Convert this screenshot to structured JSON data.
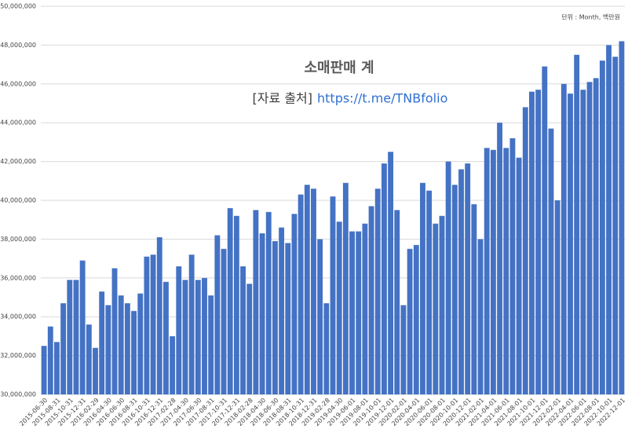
{
  "chart_data": {
    "type": "bar",
    "title": "소매판매 계",
    "source_label": "[자료 출처]",
    "source_url": "https://t.me/TNBfolio",
    "unit_note": "단위 : Month, 백만원",
    "categories": [
      "2015-06-30",
      null,
      "2015-08-31",
      null,
      "2015-10-31",
      null,
      "2015-12-31",
      null,
      "2016-02-29",
      null,
      "2016-04-30",
      null,
      "2016-06-30",
      null,
      "2016-08-31",
      null,
      "2016-10-31",
      null,
      "2016-12-31",
      null,
      "2017-02-28",
      null,
      "2017-04-30",
      null,
      "2017-06-30",
      null,
      "2017-08-31",
      null,
      "2017-10-31",
      null,
      "2017-12-31",
      null,
      "2018-02-28",
      null,
      "2018-04-30",
      null,
      "2018-06-30",
      null,
      "2018-08-31",
      null,
      "2018-10-31",
      null,
      "2018-12-31",
      null,
      "2019-02-28",
      null,
      "2019-04-30",
      null,
      "2019-06-01",
      null,
      "2019-08-01",
      null,
      "2019-10-01",
      null,
      "2019-12-01",
      null,
      "2020-02-01",
      null,
      "2020-04-01",
      null,
      "2020-06-01",
      null,
      "2020-08-01",
      null,
      "2020-10-01",
      null,
      "2020-12-01",
      null,
      "2021-02-01",
      null,
      "2021-04-01",
      null,
      "2021-06-01",
      null,
      "2021-08-01",
      null,
      "2021-10-01",
      null,
      "2021-12-01",
      null,
      "2022-02-01",
      null,
      "2022-04-01",
      null,
      "2022-06-01",
      null,
      "2022-08-01",
      null,
      "2022-10-01",
      null,
      "2022-12-01"
    ],
    "values": [
      32500000,
      33500000,
      32700000,
      34700000,
      35900000,
      35900000,
      36900000,
      33600000,
      32400000,
      35300000,
      34600000,
      36500000,
      35100000,
      34700000,
      34300000,
      35200000,
      37100000,
      37200000,
      38100000,
      35800000,
      33000000,
      36600000,
      35900000,
      37200000,
      35900000,
      36000000,
      35100000,
      38200000,
      37500000,
      39600000,
      39200000,
      36600000,
      35700000,
      39500000,
      38300000,
      39400000,
      37900000,
      38600000,
      37800000,
      39300000,
      40300000,
      40800000,
      40600000,
      38000000,
      34700000,
      40200000,
      38900000,
      40900000,
      38400000,
      38400000,
      38800000,
      39700000,
      40600000,
      41900000,
      42500000,
      39500000,
      34600000,
      37500000,
      37700000,
      40900000,
      40500000,
      38800000,
      39200000,
      42000000,
      40800000,
      41600000,
      41900000,
      39800000,
      38000000,
      42700000,
      42600000,
      44000000,
      42700000,
      43200000,
      42200000,
      44800000,
      45600000,
      45700000,
      46900000,
      43700000,
      40000000,
      46000000,
      45500000,
      47500000,
      45700000,
      46100000,
      46300000,
      47200000,
      48000000,
      47400000,
      48200000
    ],
    "color": "#4472c4",
    "ylim": [
      30000000,
      50000000
    ],
    "yticks": [
      {
        "value": 30000000,
        "label": "30,000,000"
      },
      {
        "value": 32000000,
        "label": "32,000,000"
      },
      {
        "value": 34000000,
        "label": "34,000,000"
      },
      {
        "value": 36000000,
        "label": "36,000,000"
      },
      {
        "value": 38000000,
        "label": "38,000,000"
      },
      {
        "value": 40000000,
        "label": "40,000,000"
      },
      {
        "value": 42000000,
        "label": "42,000,000"
      },
      {
        "value": 44000000,
        "label": "44,000,000"
      },
      {
        "value": 46000000,
        "label": "46,000,000"
      },
      {
        "value": 48000000,
        "label": "48,000,000"
      },
      {
        "value": 50000000,
        "label": "50,000,000"
      }
    ],
    "grid": true
  }
}
